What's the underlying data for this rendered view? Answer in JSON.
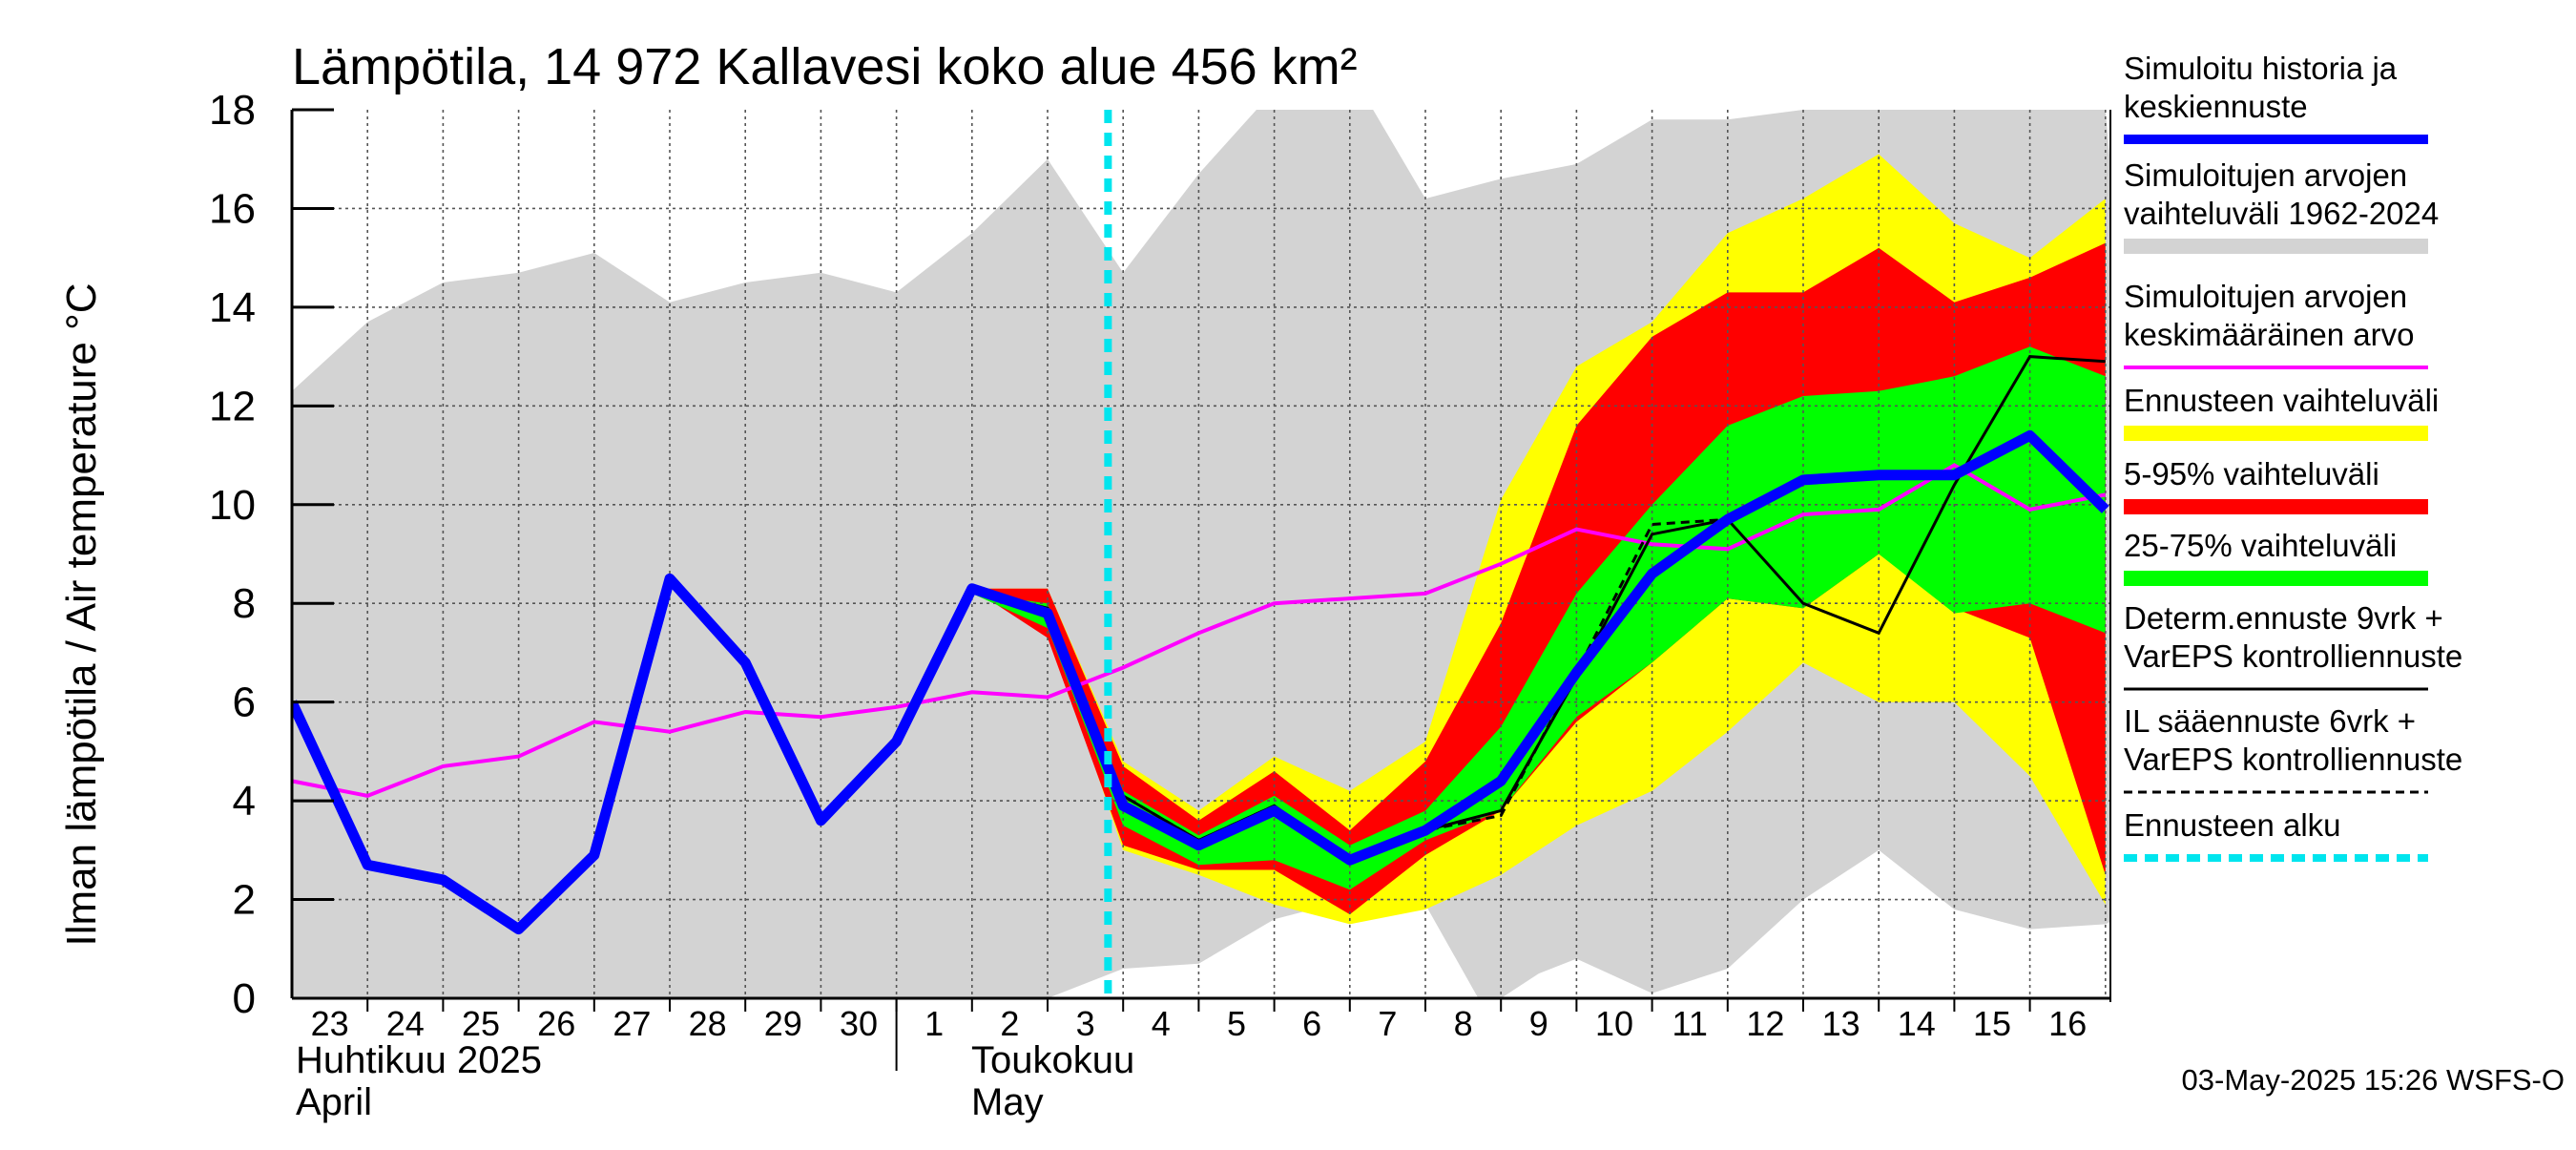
{
  "chart_data": {
    "type": "line",
    "title": "Lämpötila, 14 972 Kallavesi koko alue 456 km²",
    "ylabel": "Ilman lämpötila / Air temperature   °C",
    "ylim": [
      0,
      18
    ],
    "yticks": [
      "0",
      "2",
      "4",
      "6",
      "8",
      "10",
      "12",
      "14",
      "16",
      "18"
    ],
    "grid": true,
    "x_day_labels": [
      "23",
      "24",
      "25",
      "26",
      "27",
      "28",
      "29",
      "30",
      "1",
      "2",
      "3",
      "4",
      "5",
      "6",
      "7",
      "8",
      "9",
      "10",
      "11",
      "12",
      "13",
      "14",
      "15",
      "16"
    ],
    "months": [
      {
        "fi": "Huhtikuu  2025",
        "en": "April"
      },
      {
        "fi": "Toukokuu",
        "en": "May"
      }
    ],
    "forecast_start_day": 10.8,
    "series": {
      "historical_range": {
        "name": "Simuloitujen arvojen vaihteluväli 1962-2024",
        "color": "#d3d3d3",
        "upper": [
          [
            0,
            12.3
          ],
          [
            1,
            13.7
          ],
          [
            2,
            14.5
          ],
          [
            3,
            14.7
          ],
          [
            4,
            15.1
          ],
          [
            5,
            14.1
          ],
          [
            6,
            14.5
          ],
          [
            7,
            14.7
          ],
          [
            8,
            14.3
          ],
          [
            9,
            15.5
          ],
          [
            10,
            17.0
          ],
          [
            11,
            14.7
          ],
          [
            12,
            16.7
          ],
          [
            13,
            18.4
          ],
          [
            14,
            18.8
          ],
          [
            15,
            16.2
          ],
          [
            16,
            16.6
          ],
          [
            17,
            16.9
          ],
          [
            18,
            17.8
          ],
          [
            19,
            17.8
          ],
          [
            20,
            18.0
          ],
          [
            21,
            18.0
          ],
          [
            22,
            18.0
          ],
          [
            23,
            18.0
          ],
          [
            24,
            18.0
          ]
        ],
        "lower": [
          [
            0,
            0
          ],
          [
            10,
            0
          ],
          [
            11,
            0.6
          ],
          [
            12,
            0.7
          ],
          [
            13,
            1.6
          ],
          [
            14,
            2.0
          ],
          [
            15,
            1.9
          ],
          [
            15.7,
            0
          ],
          [
            16,
            0
          ],
          [
            16.5,
            0.5
          ],
          [
            17,
            0.8
          ],
          [
            18,
            0.1
          ],
          [
            19,
            0.6
          ],
          [
            20,
            2.0
          ],
          [
            21,
            3.0
          ],
          [
            22,
            1.8
          ],
          [
            23,
            1.4
          ],
          [
            24,
            1.5
          ],
          [
            24.9,
            2.2
          ]
        ]
      },
      "ensemble_range": {
        "name": "Ennusteen vaihteluväli",
        "color": "#ffff00",
        "upper": [
          [
            9,
            8.3
          ],
          [
            10,
            8.3
          ],
          [
            11,
            4.8
          ],
          [
            12,
            3.8
          ],
          [
            13,
            4.9
          ],
          [
            14,
            4.2
          ],
          [
            15,
            5.2
          ],
          [
            16,
            10.1
          ],
          [
            17,
            12.8
          ],
          [
            18,
            13.7
          ],
          [
            19,
            15.5
          ],
          [
            20,
            16.2
          ],
          [
            21,
            17.1
          ],
          [
            22,
            15.7
          ],
          [
            23,
            15.0
          ],
          [
            24,
            16.2
          ]
        ],
        "lower": [
          [
            24,
            1.9
          ],
          [
            23,
            4.5
          ],
          [
            22,
            6.0
          ],
          [
            21,
            6.0
          ],
          [
            20,
            6.8
          ],
          [
            19,
            5.4
          ],
          [
            18,
            4.2
          ],
          [
            17,
            3.5
          ],
          [
            16,
            2.5
          ],
          [
            15,
            1.8
          ],
          [
            14,
            1.5
          ],
          [
            13,
            1.9
          ],
          [
            12,
            2.5
          ],
          [
            11,
            3.0
          ],
          [
            10,
            7.5
          ],
          [
            9,
            8.3
          ]
        ]
      },
      "p5_95_range": {
        "name": "5-95% vaihteluväli",
        "color": "#ff0000",
        "upper": [
          [
            9,
            8.3
          ],
          [
            10,
            8.3
          ],
          [
            11,
            4.7
          ],
          [
            12,
            3.6
          ],
          [
            13,
            4.6
          ],
          [
            14,
            3.4
          ],
          [
            15,
            4.8
          ],
          [
            16,
            7.6
          ],
          [
            17,
            11.6
          ],
          [
            18,
            13.4
          ],
          [
            19,
            14.3
          ],
          [
            20,
            14.3
          ],
          [
            21,
            15.2
          ],
          [
            22,
            14.1
          ],
          [
            23,
            14.6
          ],
          [
            24,
            15.3
          ]
        ],
        "lower": [
          [
            24,
            2.5
          ],
          [
            23,
            7.3
          ],
          [
            22,
            7.9
          ],
          [
            21,
            9.0
          ],
          [
            20,
            7.9
          ],
          [
            19,
            8.1
          ],
          [
            18,
            6.8
          ],
          [
            17,
            5.6
          ],
          [
            16,
            3.8
          ],
          [
            15,
            2.9
          ],
          [
            14,
            1.7
          ],
          [
            13,
            2.6
          ],
          [
            12,
            2.6
          ],
          [
            11,
            3.1
          ],
          [
            10,
            7.3
          ],
          [
            9,
            8.3
          ]
        ]
      },
      "p25_75_range": {
        "name": "25-75% vaihteluväli",
        "color": "#00ff00",
        "upper": [
          [
            9,
            8.2
          ],
          [
            10,
            8.0
          ],
          [
            11,
            4.2
          ],
          [
            12,
            3.3
          ],
          [
            13,
            4.1
          ],
          [
            14,
            3.1
          ],
          [
            15,
            3.8
          ],
          [
            16,
            5.5
          ],
          [
            17,
            8.2
          ],
          [
            18,
            10.0
          ],
          [
            19,
            11.6
          ],
          [
            20,
            12.2
          ],
          [
            21,
            12.3
          ],
          [
            22,
            12.6
          ],
          [
            23,
            13.2
          ],
          [
            24,
            12.6
          ]
        ],
        "lower": [
          [
            24,
            7.4
          ],
          [
            23,
            8.0
          ],
          [
            22,
            7.8
          ],
          [
            21,
            9.0
          ],
          [
            20,
            7.9
          ],
          [
            19,
            8.1
          ],
          [
            18,
            6.8
          ],
          [
            17,
            5.7
          ],
          [
            16,
            3.8
          ],
          [
            15,
            3.2
          ],
          [
            14,
            2.2
          ],
          [
            13,
            2.8
          ],
          [
            12,
            2.7
          ],
          [
            11,
            3.5
          ],
          [
            10,
            7.5
          ],
          [
            9,
            8.2
          ]
        ]
      },
      "historical_mean": {
        "name": "Simuloitujen arvojen keskimääräinen arvo",
        "color": "#ff00ff",
        "points": [
          [
            0,
            4.4
          ],
          [
            1,
            4.1
          ],
          [
            2,
            4.7
          ],
          [
            3,
            4.9
          ],
          [
            4,
            5.6
          ],
          [
            5,
            5.4
          ],
          [
            6,
            5.8
          ],
          [
            7,
            5.7
          ],
          [
            8,
            5.9
          ],
          [
            9,
            6.2
          ],
          [
            10,
            6.1
          ],
          [
            11,
            6.7
          ],
          [
            12,
            7.4
          ],
          [
            13,
            8.0
          ],
          [
            14,
            8.1
          ],
          [
            15,
            8.2
          ],
          [
            16,
            8.8
          ],
          [
            17,
            9.5
          ],
          [
            18,
            9.2
          ],
          [
            19,
            9.1
          ],
          [
            20,
            9.8
          ],
          [
            21,
            9.9
          ],
          [
            22,
            10.8
          ],
          [
            23,
            9.9
          ],
          [
            24,
            10.2
          ]
        ]
      },
      "deterministic": {
        "name": "Determ.ennuste 9vrk + VarEPS kontrolliennuste",
        "color": "#000000",
        "points": [
          [
            9,
            8.3
          ],
          [
            10,
            7.9
          ],
          [
            11,
            4.1
          ],
          [
            12,
            3.2
          ],
          [
            13,
            3.9
          ],
          [
            14,
            2.8
          ],
          [
            15,
            3.4
          ],
          [
            16,
            3.8
          ],
          [
            17,
            6.5
          ],
          [
            18,
            9.4
          ],
          [
            19,
            9.7
          ],
          [
            20,
            8.0
          ],
          [
            21,
            7.4
          ],
          [
            22,
            10.4
          ],
          [
            23,
            13.0
          ],
          [
            24,
            12.9
          ]
        ]
      },
      "il_forecast": {
        "name": "IL sääennuste 6vrk + VarEPS kontrolliennuste",
        "color": "#000000",
        "points": [
          [
            9,
            8.3
          ],
          [
            10,
            7.9
          ],
          [
            11,
            4.1
          ],
          [
            12,
            3.2
          ],
          [
            13,
            3.9
          ],
          [
            14,
            2.8
          ],
          [
            15,
            3.4
          ],
          [
            16,
            3.7
          ],
          [
            17,
            6.6
          ],
          [
            18,
            9.6
          ],
          [
            19,
            9.7
          ]
        ]
      },
      "simulated_history": {
        "name": "Simuloitu historia ja keskiennuste",
        "color": "#0000ff",
        "points": [
          [
            0,
            6.0
          ],
          [
            1,
            2.7
          ],
          [
            2,
            2.4
          ],
          [
            3,
            1.4
          ],
          [
            4,
            2.9
          ],
          [
            5,
            8.5
          ],
          [
            6,
            6.8
          ],
          [
            7,
            3.6
          ],
          [
            8,
            5.2
          ],
          [
            9,
            8.3
          ],
          [
            10,
            7.8
          ],
          [
            11,
            3.9
          ],
          [
            12,
            3.1
          ],
          [
            13,
            3.8
          ],
          [
            14,
            2.8
          ],
          [
            15,
            3.4
          ],
          [
            16,
            4.4
          ],
          [
            17,
            6.6
          ],
          [
            18,
            8.6
          ],
          [
            19,
            9.7
          ],
          [
            20,
            10.5
          ],
          [
            21,
            10.6
          ],
          [
            22,
            10.6
          ],
          [
            23,
            11.4
          ],
          [
            24,
            9.9
          ]
        ]
      }
    },
    "legend": [
      {
        "key": "simulated_history",
        "text": [
          "Simuloitu historia ja",
          "keskiennuste"
        ],
        "color": "#0000ff",
        "style": "thick"
      },
      {
        "key": "historical_range",
        "text": [
          "Simuloitujen arvojen",
          "vaihteluväli 1962-2024"
        ],
        "color": "#d3d3d3",
        "style": "band"
      },
      {
        "key": "historical_mean",
        "text": [
          "Simuloitujen arvojen",
          "keskimääräinen arvo"
        ],
        "color": "#ff00ff",
        "style": "thin"
      },
      {
        "key": "ensemble_range",
        "text": [
          "Ennusteen vaihteluväli"
        ],
        "color": "#ffff00",
        "style": "band"
      },
      {
        "key": "p5_95_range",
        "text": [
          "5-95% vaihteluväli"
        ],
        "color": "#ff0000",
        "style": "band"
      },
      {
        "key": "p25_75_range",
        "text": [
          "25-75% vaihteluväli"
        ],
        "color": "#00ff00",
        "style": "band"
      },
      {
        "key": "deterministic",
        "text": [
          "Determ.ennuste 9vrk +",
          "VarEPS kontrolliennuste"
        ],
        "color": "#000000",
        "style": "line"
      },
      {
        "key": "il_forecast",
        "text": [
          "IL sääennuste 6vrk  +",
          "  VarEPS kontrolliennuste"
        ],
        "color": "#000000",
        "style": "dashed"
      },
      {
        "key": "forecast_start",
        "text": [
          "Ennusteen alku"
        ],
        "color": "#00e5ee",
        "style": "cyan-dashed"
      }
    ],
    "footer": "03-May-2025 15:26 WSFS-O"
  }
}
